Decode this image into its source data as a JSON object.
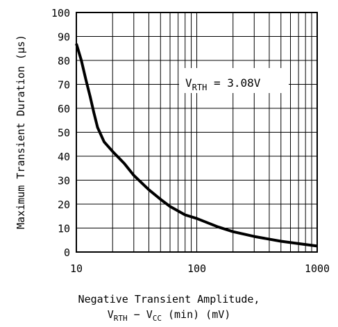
{
  "chart_data": {
    "type": "line",
    "x_scale": "log",
    "xlim": [
      10,
      1000
    ],
    "ylim": [
      0,
      100
    ],
    "x_ticks": [
      "10",
      "100",
      "1000"
    ],
    "y_ticks": [
      "0",
      "10",
      "20",
      "30",
      "40",
      "50",
      "60",
      "70",
      "80",
      "90",
      "100"
    ],
    "ylabel": "Maximum Transient Duration (µs)",
    "xlabel_line1": "Negative Transient Amplitude,",
    "xlabel_line2": {
      "v1": "V",
      "v1_sub": "RTH",
      "minus": " − ",
      "v2": "V",
      "v2_sub": "CC",
      "rest": "(min) (mV)"
    },
    "annotation": {
      "v": "V",
      "sub": "RTH",
      "rest": " = 3.08V"
    },
    "grid": true,
    "series": [
      {
        "x": [
          10,
          11,
          12,
          13,
          14,
          15,
          17,
          20,
          25,
          30,
          40,
          50,
          60,
          80,
          100,
          150,
          200,
          300,
          500,
          700,
          1000
        ],
        "y": [
          87,
          80,
          72,
          65,
          58,
          52,
          46,
          42,
          37,
          32,
          26,
          22,
          19,
          15.5,
          14,
          10.5,
          8.5,
          6.5,
          4.5,
          3.5,
          2.5
        ]
      }
    ]
  }
}
